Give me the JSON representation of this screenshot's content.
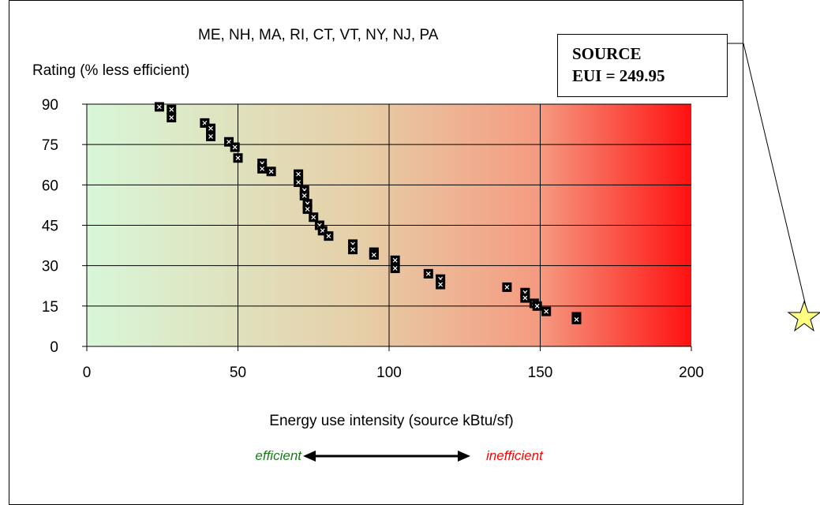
{
  "chart_data": {
    "type": "scatter",
    "title": "ME, NH, MA, RI, CT, VT, NY, NJ, PA",
    "ylabel": "Rating (% less efficient)",
    "xlabel": "Energy use intensity (source kBtu/sf)",
    "xlim": [
      0,
      200
    ],
    "ylim": [
      0,
      90
    ],
    "xticks": [
      "0",
      "50",
      "100",
      "150",
      "200"
    ],
    "yticks": [
      "0",
      "15",
      "30",
      "45",
      "60",
      "75",
      "90"
    ],
    "grid": true,
    "background_gradient": [
      "#d8f7d8",
      "#ff1010"
    ],
    "points": [
      [
        24,
        89
      ],
      [
        28,
        88
      ],
      [
        28,
        85
      ],
      [
        39,
        83
      ],
      [
        41,
        81
      ],
      [
        41,
        78
      ],
      [
        47,
        76
      ],
      [
        49,
        74
      ],
      [
        50,
        70
      ],
      [
        58,
        68
      ],
      [
        58,
        66
      ],
      [
        61,
        65
      ],
      [
        70,
        64
      ],
      [
        70,
        61
      ],
      [
        72,
        58
      ],
      [
        72,
        56
      ],
      [
        73,
        53
      ],
      [
        73,
        51
      ],
      [
        75,
        48
      ],
      [
        77,
        45
      ],
      [
        78,
        43
      ],
      [
        80,
        41
      ],
      [
        88,
        38
      ],
      [
        88,
        36
      ],
      [
        95,
        35
      ],
      [
        95,
        34
      ],
      [
        102,
        32
      ],
      [
        102,
        29
      ],
      [
        113,
        27
      ],
      [
        117,
        25
      ],
      [
        117,
        23
      ],
      [
        139,
        22
      ],
      [
        145,
        20
      ],
      [
        145,
        18
      ],
      [
        148,
        16
      ],
      [
        149,
        15
      ],
      [
        152,
        13
      ],
      [
        162,
        11
      ],
      [
        162,
        10
      ]
    ],
    "point_color": "#000000"
  },
  "annotation": {
    "line1": "SOURCE",
    "line2": "EUI = 249.95"
  },
  "legend_arrow": {
    "left_label": "efficient",
    "right_label": "inefficient",
    "left_color": "#1a7a1a",
    "right_color": "#ff0000"
  },
  "marker": {
    "icon": "star-icon",
    "fill": "#ffff80"
  }
}
